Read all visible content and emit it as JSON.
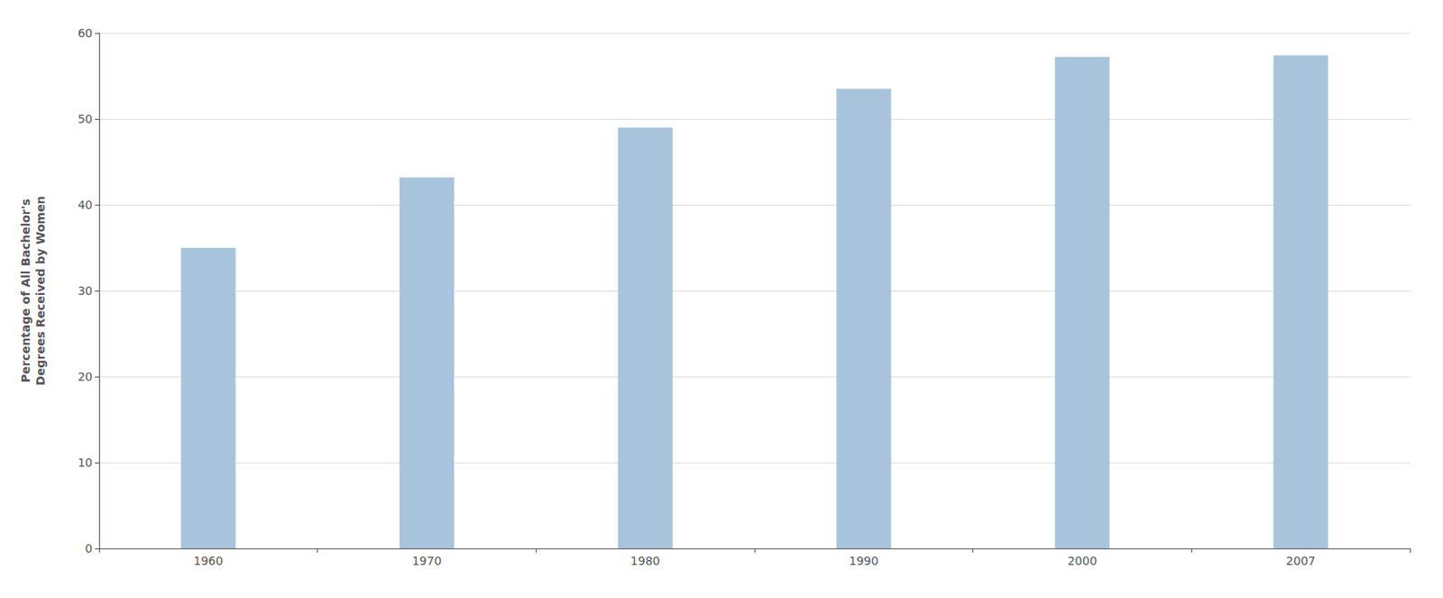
{
  "chart_data": {
    "type": "bar",
    "categories": [
      "1960",
      "1970",
      "1980",
      "1990",
      "2000",
      "2007"
    ],
    "values": [
      35.0,
      43.2,
      49.0,
      53.5,
      57.2,
      57.4
    ],
    "color": "#a8c4dc",
    "ylabel": "Percentage of All Bachelor's\nDegrees Received by Women",
    "ylim": [
      0,
      60
    ],
    "yticks": [
      0,
      10,
      20,
      30,
      40,
      50,
      60
    ],
    "grid": true
  }
}
